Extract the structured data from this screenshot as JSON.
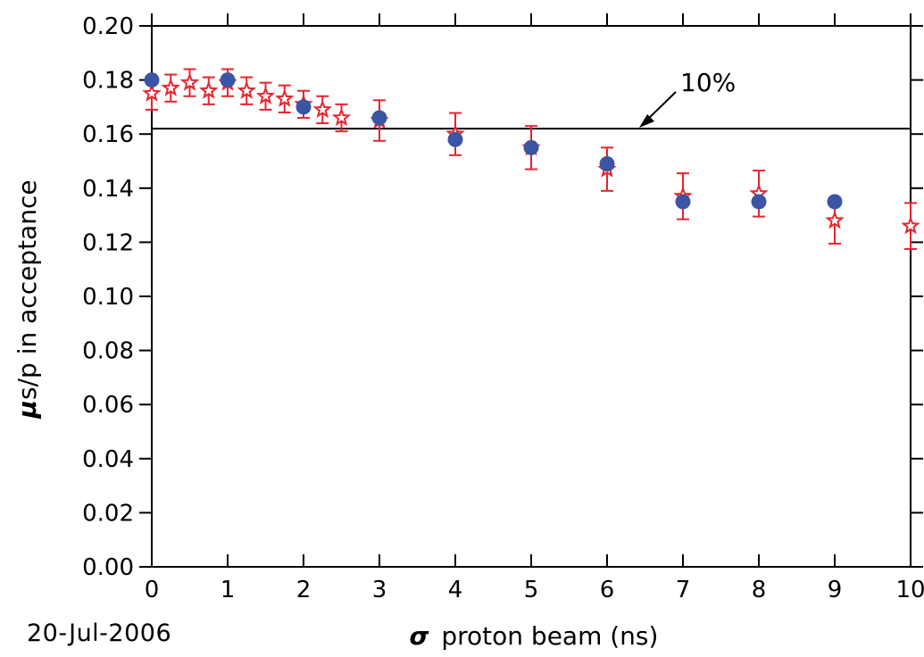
{
  "chart_data": {
    "type": "scatter",
    "title": "",
    "xlabel": "proton beam (ns)",
    "xlabel_symbol": "σ",
    "ylabel": "s/p in acceptance",
    "ylabel_symbol": "μ",
    "xlim": [
      0,
      10
    ],
    "ylim": [
      0.0,
      0.2
    ],
    "x_ticks": [
      "0",
      "1",
      "2",
      "3",
      "4",
      "5",
      "6",
      "7",
      "8",
      "9",
      "10"
    ],
    "y_ticks": [
      "0.00",
      "0.02",
      "0.04",
      "0.06",
      "0.08",
      "0.10",
      "0.12",
      "0.14",
      "0.16",
      "0.18",
      "0.20"
    ],
    "grid": false,
    "reference_line": {
      "y": 0.162,
      "label": "10%"
    },
    "series": [
      {
        "marker": "filled-circle",
        "color": "#3a55a4",
        "points": [
          {
            "x": 0,
            "y": 0.18
          },
          {
            "x": 1,
            "y": 0.18
          },
          {
            "x": 2,
            "y": 0.17
          },
          {
            "x": 3,
            "y": 0.166
          },
          {
            "x": 4,
            "y": 0.158
          },
          {
            "x": 5,
            "y": 0.155
          },
          {
            "x": 6,
            "y": 0.149
          },
          {
            "x": 7,
            "y": 0.135
          },
          {
            "x": 8,
            "y": 0.135
          },
          {
            "x": 9,
            "y": 0.135
          }
        ]
      },
      {
        "marker": "open-star",
        "color": "#e8242c",
        "points": [
          {
            "x": 0.0,
            "y": 0.175,
            "err": 0.006
          },
          {
            "x": 0.25,
            "y": 0.177,
            "err": 0.005
          },
          {
            "x": 0.5,
            "y": 0.179,
            "err": 0.005
          },
          {
            "x": 0.75,
            "y": 0.176,
            "err": 0.005
          },
          {
            "x": 1.0,
            "y": 0.179,
            "err": 0.005
          },
          {
            "x": 1.25,
            "y": 0.176,
            "err": 0.005
          },
          {
            "x": 1.5,
            "y": 0.174,
            "err": 0.005
          },
          {
            "x": 1.75,
            "y": 0.173,
            "err": 0.005
          },
          {
            "x": 2.0,
            "y": 0.171,
            "err": 0.005
          },
          {
            "x": 2.25,
            "y": 0.169,
            "err": 0.005
          },
          {
            "x": 2.5,
            "y": 0.166,
            "err": 0.005
          },
          {
            "x": 3.0,
            "y": 0.165,
            "err": 0.0075
          },
          {
            "x": 4.0,
            "y": 0.16,
            "err": 0.0078
          },
          {
            "x": 5.0,
            "y": 0.155,
            "err": 0.008
          },
          {
            "x": 6.0,
            "y": 0.147,
            "err": 0.008
          },
          {
            "x": 7.0,
            "y": 0.137,
            "err": 0.0085
          },
          {
            "x": 8.0,
            "y": 0.138,
            "err": 0.0085
          },
          {
            "x": 9.0,
            "y": 0.128,
            "err": 0.0085
          },
          {
            "x": 10.0,
            "y": 0.126,
            "err": 0.0085
          }
        ]
      }
    ]
  },
  "footer": {
    "date": "20-Jul-2006"
  }
}
